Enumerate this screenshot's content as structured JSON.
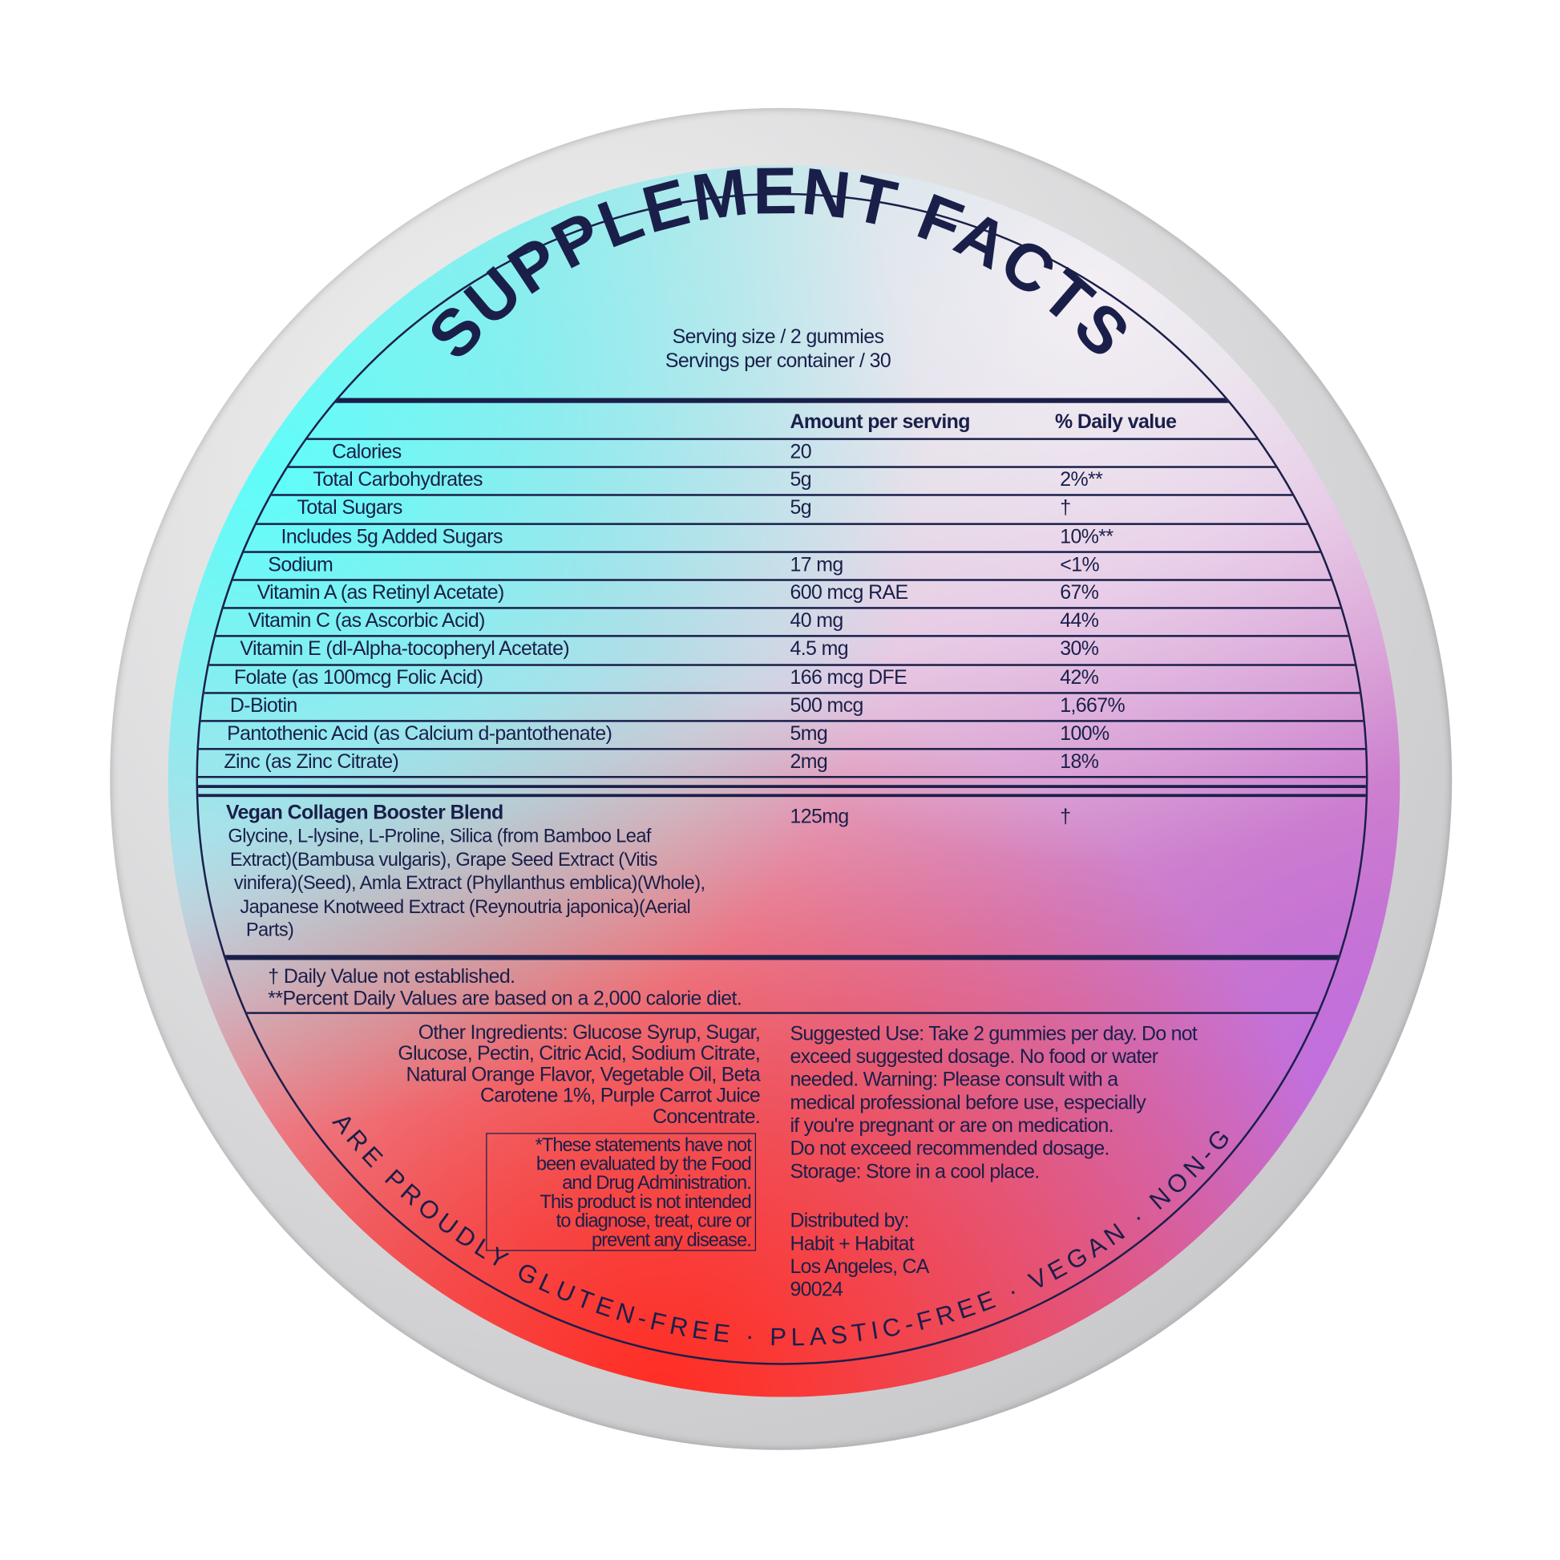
{
  "title": "SUPPLEMENT FACTS",
  "serving_size": "Serving size / 2 gummies",
  "servings_per_container": "Servings per container / 30",
  "headers": {
    "amount": "Amount per serving",
    "dv": "% Daily value"
  },
  "rows": [
    {
      "name": "Calories",
      "amount": "20",
      "dv": ""
    },
    {
      "name": "Total Carbohydrates",
      "amount": "5g",
      "dv": "2%**"
    },
    {
      "name": "Total Sugars",
      "amount": "5g",
      "dv": "†"
    },
    {
      "name": "Includes 5g Added Sugars",
      "amount": "",
      "dv": "10%**"
    },
    {
      "name": "Sodium",
      "amount": "17 mg",
      "dv": "<1%"
    },
    {
      "name": "Vitamin A (as Retinyl Acetate)",
      "amount": "600 mcg RAE",
      "dv": "67%"
    },
    {
      "name": "Vitamin C (as Ascorbic Acid)",
      "amount": "40 mg",
      "dv": "44%"
    },
    {
      "name": "Vitamin E (dl-Alpha-tocopheryl Acetate)",
      "amount": "4.5 mg",
      "dv": "30%"
    },
    {
      "name": "Folate (as 100mcg Folic Acid)",
      "amount": "166 mcg DFE",
      "dv": "42%"
    },
    {
      "name": "D-Biotin",
      "amount": "500 mcg",
      "dv": "1,667%"
    },
    {
      "name": "Pantothenic Acid (as Calcium d-pantothenate)",
      "amount": "5mg",
      "dv": "100%"
    },
    {
      "name": "Zinc (as Zinc Citrate)",
      "amount": "2mg",
      "dv": "18%"
    }
  ],
  "blend": {
    "name": "Vegan Collagen Booster Blend",
    "amount": "125mg",
    "dv": "†",
    "lines": [
      "Glycine, L-lysine, L-Proline, Silica (from Bamboo Leaf",
      "Extract)(Bambusa vulgaris), Grape Seed Extract (Vitis",
      "vinifera)(Seed), Amla Extract (Phyllanthus emblica)(Whole),",
      "Japanese Knotweed Extract (Reynoutria japonica)(Aerial",
      "Parts)"
    ]
  },
  "footnotes": [
    "† Daily Value not established.",
    "**Percent Daily Values are based on a 2,000 calorie diet."
  ],
  "other_ingredients": [
    "Other Ingredients: Glucose Syrup, Sugar,",
    "Glucose, Pectin, Citric Acid, Sodium Citrate,",
    "Natural Orange Flavor, Vegetable Oil, Beta",
    "Carotene 1%, Purple Carrot Juice",
    "Concentrate."
  ],
  "fda_statement": [
    "*These statements have not",
    "been evaluated by the Food",
    "and Drug Administration.",
    "This product is not intended",
    "to diagnose, treat, cure or",
    "prevent any disease."
  ],
  "suggested_use": [
    "Suggested Use: Take 2 gummies per day. Do not",
    "exceed suggested dosage. No food or water",
    "needed. Warning: Please consult with a",
    "medical professional before use, especially",
    "if you're pregnant or are on medication.",
    "Do not exceed recommended dosage.",
    "Storage: Store in a cool place."
  ],
  "distributor": [
    "Distributed by:",
    "Habit + Habitat",
    "Los Angeles, CA",
    "90024"
  ],
  "bottom_arc": "WE ARE PROUDLY GLUTEN-FREE · PLASTIC-FREE · VEGAN · NON-GMO"
}
